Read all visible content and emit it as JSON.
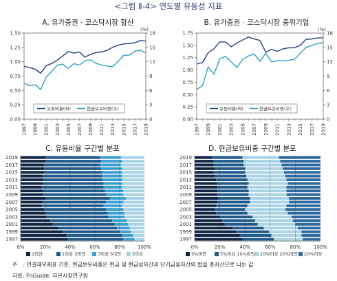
{
  "figure_title": "<그림 Ⅱ-4> 연도별 유동성 지표",
  "note": "주　: 연결재무제표 기준, 현금보유비중은 현금 및 현금성자산과 단기금융자산의 합을 총자산으로 나눈 값",
  "source": "자료: FnGuide, 자본시장연구원",
  "colors": {
    "title": "#2a3a7a",
    "navy": "#1f3c88",
    "teal": "#2aa1c9",
    "darkest": "#0f2544",
    "dark": "#1f5a8a",
    "mid": "#3a9fd0",
    "light": "#a8d4e8"
  },
  "chart_data": [
    {
      "id": "A",
      "type": "line",
      "title": "A. 유가증권 · 코스닥시장 합산",
      "x": [
        "1997",
        "1998",
        "1999",
        "2000",
        "2001",
        "2002",
        "2003",
        "2004",
        "2005",
        "2006",
        "2007",
        "2008",
        "2009",
        "2010",
        "2011",
        "2012",
        "2013",
        "2014",
        "2015",
        "2016",
        "2017",
        "2018",
        "2019"
      ],
      "x_ticks": [
        "1997",
        "1999",
        "2001",
        "2003",
        "2005",
        "2007",
        "2009",
        "2011",
        "2013",
        "2015",
        "2017",
        "2019"
      ],
      "y_left_range": [
        0,
        1.5
      ],
      "y_left_ticks": [
        "0.00",
        "0.25",
        "0.50",
        "0.75",
        "1.00",
        "1.25",
        "1.50"
      ],
      "y_right_range": [
        0,
        18
      ],
      "y_right_ticks": [
        "0",
        "3",
        "6",
        "9",
        "12",
        "15",
        "18"
      ],
      "y_right_unit": "(%)",
      "series": [
        {
          "name": "유동비율(좌)",
          "axis": "left",
          "color": "#1f3c88",
          "values": [
            0.92,
            0.9,
            0.87,
            0.8,
            0.93,
            0.97,
            1.03,
            1.1,
            1.18,
            1.15,
            1.17,
            1.08,
            1.13,
            1.16,
            1.17,
            1.2,
            1.25,
            1.29,
            1.31,
            1.32,
            1.33,
            1.37,
            1.36
          ]
        },
        {
          "name": "현금보유비중(우)",
          "axis": "right",
          "color": "#2aa1c9",
          "values": [
            7.5,
            7.0,
            7.2,
            6.2,
            8.8,
            10.0,
            11.3,
            11.5,
            10.6,
            11.6,
            11.3,
            12.2,
            12.4,
            11.7,
            11.3,
            11.1,
            11.0,
            12.1,
            13.3,
            13.4,
            14.2,
            14.4,
            13.9
          ]
        }
      ]
    },
    {
      "id": "B",
      "type": "line",
      "title": "B. 유가증권 · 코스닥시장 중위기업",
      "x": [
        "1997",
        "1998",
        "1999",
        "2000",
        "2001",
        "2002",
        "2003",
        "2004",
        "2005",
        "2006",
        "2007",
        "2008",
        "2009",
        "2010",
        "2011",
        "2012",
        "2013",
        "2014",
        "2015",
        "2016",
        "2017",
        "2018",
        "2019"
      ],
      "x_ticks": [
        "1997",
        "1999",
        "2001",
        "2003",
        "2005",
        "2007",
        "2009",
        "2011",
        "2013",
        "2015",
        "2017",
        "2019"
      ],
      "y_left_range": [
        0,
        1.75
      ],
      "y_left_ticks": [
        "0.00",
        "0.25",
        "0.50",
        "0.75",
        "1.00",
        "1.25",
        "1.50",
        "1.75"
      ],
      "y_right_range": [
        0,
        18
      ],
      "y_right_ticks": [
        "0",
        "3",
        "6",
        "9",
        "12",
        "15",
        "18"
      ],
      "y_right_unit": "(%)",
      "series": [
        {
          "name": "유동비율(좌)",
          "axis": "left",
          "color": "#1f3c88",
          "values": [
            1.12,
            1.15,
            1.35,
            1.43,
            1.57,
            1.57,
            1.47,
            1.55,
            1.61,
            1.67,
            1.63,
            1.6,
            1.36,
            1.42,
            1.38,
            1.43,
            1.45,
            1.45,
            1.5,
            1.62,
            1.63,
            1.65,
            1.65
          ]
        },
        {
          "name": "현금보유비중(우)",
          "axis": "right",
          "color": "#2aa1c9",
          "values": [
            6.2,
            7.0,
            10.9,
            9.4,
            12.6,
            13.1,
            12.0,
            10.8,
            12.5,
            13.2,
            13.6,
            12.1,
            13.8,
            12.0,
            12.2,
            12.2,
            12.3,
            12.5,
            13.8,
            15.0,
            15.4,
            15.8,
            16.0
          ]
        }
      ]
    },
    {
      "id": "C",
      "type": "bar",
      "stacked": "percent",
      "orientation": "horizontal",
      "title": "C. 유동비율 구간별 분포",
      "categories": [
        "2019",
        "2018",
        "2017",
        "2016",
        "2015",
        "2014",
        "2013",
        "2012",
        "2011",
        "2010",
        "2009",
        "2008",
        "2007",
        "2006",
        "2005",
        "2004",
        "2003",
        "2002",
        "2001",
        "2000",
        "1999",
        "1998",
        "1997"
      ],
      "y_ticks": [
        "2019",
        "2017",
        "2015",
        "2013",
        "2011",
        "2009",
        "2007",
        "2005",
        "2003",
        "2001",
        "1999",
        "1997"
      ],
      "x_ticks": [
        "0%",
        "20%",
        "40%",
        "60%",
        "80%",
        "100%"
      ],
      "series": [
        {
          "name": "1미만",
          "color": "#0f2544",
          "values": [
            20,
            20,
            19,
            19,
            19,
            18,
            18,
            18,
            17,
            18,
            18,
            20,
            18,
            17,
            19,
            20,
            21,
            24,
            26,
            31,
            34,
            37,
            38
          ]
        },
        {
          "name": "1이상 3미만",
          "color": "#1f5a8a",
          "values": [
            44,
            45,
            45,
            46,
            47,
            48,
            48,
            49,
            50,
            50,
            51,
            52,
            51,
            50,
            50,
            50,
            50,
            50,
            50,
            47,
            46,
            45,
            45
          ]
        },
        {
          "name": "3이상 5미만",
          "color": "#3a9fd0",
          "values": [
            17,
            17,
            17,
            17,
            16,
            16,
            16,
            15,
            15,
            15,
            14,
            13,
            14,
            15,
            14,
            14,
            13,
            12,
            11,
            10,
            9,
            9,
            9
          ]
        },
        {
          "name": "5이상",
          "color": "#a8d4e8",
          "values": [
            19,
            18,
            19,
            18,
            18,
            18,
            18,
            18,
            18,
            17,
            17,
            15,
            17,
            18,
            17,
            16,
            16,
            14,
            13,
            12,
            11,
            9,
            8
          ]
        }
      ]
    },
    {
      "id": "D",
      "type": "bar",
      "stacked": "percent",
      "orientation": "horizontal",
      "title": "D. 현금보유비중 구간별 분포",
      "categories": [
        "2019",
        "2018",
        "2017",
        "2016",
        "2015",
        "2014",
        "2013",
        "2012",
        "2011",
        "2010",
        "2009",
        "2008",
        "2007",
        "2006",
        "2005",
        "2004",
        "2003",
        "2002",
        "2001",
        "2000",
        "1999",
        "1998",
        "1997"
      ],
      "y_ticks": [
        "2019",
        "2017",
        "2015",
        "2013",
        "2011",
        "2009",
        "2007",
        "2005",
        "2003",
        "2001",
        "1999",
        "1997"
      ],
      "x_ticks": [
        "0%",
        "20%",
        "40%",
        "60%",
        "80%",
        "100%"
      ],
      "series": [
        {
          "name": "5%미만",
          "color": "#0f2544",
          "values": [
            14,
            15,
            15,
            16,
            15,
            16,
            17,
            18,
            18,
            18,
            18,
            19,
            18,
            17,
            16,
            17,
            20,
            22,
            24,
            30,
            33,
            36,
            38
          ]
        },
        {
          "name": "5%이상 10%미만",
          "color": "#1f5a8a",
          "values": [
            24,
            24,
            24,
            24,
            25,
            25,
            25,
            25,
            24,
            25,
            25,
            25,
            26,
            25,
            24,
            25,
            26,
            26,
            26,
            25,
            26,
            25,
            25
          ]
        },
        {
          "name": "10%이상 20%미만",
          "color": "#a8d4e8",
          "values": [
            29,
            29,
            30,
            30,
            31,
            31,
            31,
            31,
            31,
            30,
            30,
            31,
            31,
            31,
            32,
            32,
            31,
            30,
            30,
            27,
            26,
            24,
            23
          ]
        },
        {
          "name": "20%이상",
          "color": "#2e6aa0",
          "values": [
            33,
            32,
            31,
            30,
            29,
            28,
            27,
            26,
            27,
            27,
            27,
            25,
            25,
            27,
            28,
            26,
            23,
            22,
            20,
            18,
            15,
            15,
            14
          ]
        }
      ]
    }
  ]
}
